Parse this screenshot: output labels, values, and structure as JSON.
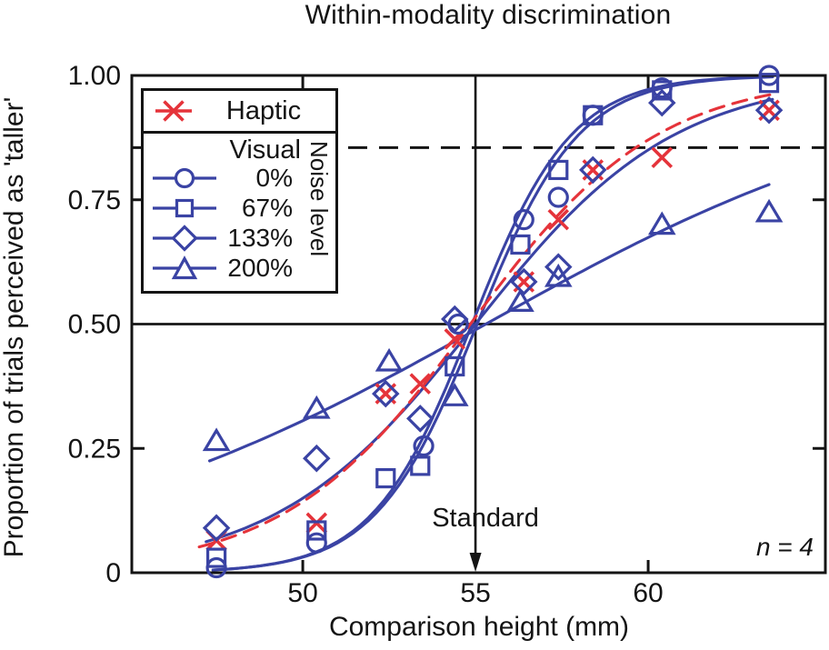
{
  "chart_data": {
    "type": "scatter",
    "title": "Within-modality discrimination",
    "xlabel": "Comparison height (mm)",
    "ylabel": "Proportion of trials perceived as 'taller'",
    "axes": {
      "x": {
        "min": 45.05,
        "max": 65.13,
        "ticks": [
          50,
          55,
          60
        ],
        "tick_labels": [
          "50",
          "55",
          "60"
        ]
      },
      "y": {
        "min": 0,
        "max": 1,
        "ticks": [
          0,
          0.25,
          0.5,
          0.75,
          1
        ],
        "tick_labels": [
          "0",
          "0.25",
          "0.50",
          "0.75",
          "1.00"
        ]
      }
    },
    "colors": {
      "visual": "#3A43A4",
      "haptic": "#E5333A",
      "axis": "#141414"
    },
    "series": [
      {
        "key": "haptic",
        "name": "Haptic",
        "marker": "x",
        "color_key": "haptic",
        "points": [
          [
            47.5,
            0.065
          ],
          [
            50.4,
            0.1
          ],
          [
            52.4,
            0.36
          ],
          [
            53.4,
            0.38
          ],
          [
            54.4,
            0.47
          ],
          [
            56.4,
            0.585
          ],
          [
            57.4,
            0.71
          ],
          [
            58.4,
            0.81
          ],
          [
            60.4,
            0.835
          ],
          [
            63.5,
            0.93
          ]
        ]
      },
      {
        "key": "visual_0",
        "name": "Visual 0% noise",
        "marker": "circle",
        "color_key": "visual",
        "points": [
          [
            47.5,
            0.01
          ],
          [
            50.4,
            0.06
          ],
          [
            53.5,
            0.255
          ],
          [
            54.5,
            0.5
          ],
          [
            56.4,
            0.71
          ],
          [
            57.4,
            0.755
          ],
          [
            58.4,
            0.92
          ],
          [
            60.4,
            0.975
          ],
          [
            63.5,
            1.0
          ]
        ]
      },
      {
        "key": "visual_67",
        "name": "Visual 67% noise",
        "marker": "square",
        "color_key": "visual",
        "points": [
          [
            47.5,
            0.03
          ],
          [
            50.4,
            0.085
          ],
          [
            52.4,
            0.19
          ],
          [
            53.4,
            0.215
          ],
          [
            54.4,
            0.415
          ],
          [
            56.3,
            0.66
          ],
          [
            57.4,
            0.81
          ],
          [
            58.4,
            0.92
          ],
          [
            60.4,
            0.97
          ],
          [
            63.5,
            0.985
          ]
        ]
      },
      {
        "key": "visual_133",
        "name": "Visual 133% noise",
        "marker": "diamond",
        "color_key": "visual",
        "points": [
          [
            47.5,
            0.09
          ],
          [
            50.4,
            0.23
          ],
          [
            52.4,
            0.36
          ],
          [
            53.4,
            0.31
          ],
          [
            54.4,
            0.51
          ],
          [
            56.4,
            0.585
          ],
          [
            57.4,
            0.615
          ],
          [
            58.4,
            0.81
          ],
          [
            60.4,
            0.945
          ],
          [
            63.5,
            0.93
          ]
        ]
      },
      {
        "key": "visual_200",
        "name": "Visual 200% noise",
        "marker": "triangle",
        "color_key": "visual",
        "points": [
          [
            47.5,
            0.265
          ],
          [
            50.4,
            0.33
          ],
          [
            52.5,
            0.425
          ],
          [
            54.4,
            0.355
          ],
          [
            56.3,
            0.545
          ],
          [
            57.4,
            0.595
          ],
          [
            60.4,
            0.7
          ],
          [
            63.5,
            0.725
          ]
        ]
      }
    ],
    "fits": [
      {
        "series": "visual_0",
        "shape": "cumulative_gaussian",
        "pse": 54.9,
        "sigma": 2.45,
        "x_range": [
          47.4,
          63.6
        ],
        "style": "solid",
        "color_key": "visual"
      },
      {
        "series": "visual_67",
        "shape": "cumulative_gaussian",
        "pse": 55.05,
        "sigma": 2.5,
        "x_range": [
          47.4,
          63.6
        ],
        "style": "solid",
        "color_key": "visual"
      },
      {
        "series": "visual_133",
        "shape": "cumulative_gaussian",
        "pse": 55.0,
        "sigma": 4.9,
        "x_range": [
          47.2,
          63.6
        ],
        "style": "solid",
        "color_key": "visual"
      },
      {
        "series": "visual_200",
        "shape": "cumulative_gaussian",
        "pse": 55.3,
        "sigma": 11.0,
        "x_range": [
          47.3,
          63.5
        ],
        "style": "solid",
        "color_key": "visual"
      },
      {
        "series": "haptic",
        "shape": "cumulative_gaussian",
        "pse": 54.85,
        "sigma": 4.6,
        "x_range": [
          47.0,
          63.6
        ],
        "style": "dashed",
        "color_key": "haptic"
      }
    ],
    "reference_lines": {
      "h_solid_y": 0.5,
      "h_dashed_y": 0.855,
      "v_solid_x": 55
    },
    "annotations": {
      "standard": {
        "label": "Standard",
        "x": 55
      },
      "sample_size": {
        "label": "n = 4"
      }
    },
    "legend": {
      "haptic_label": "Haptic",
      "visual_label": "Visual",
      "noise_label": "Noise level",
      "rows": [
        {
          "series": "visual_0",
          "label": "0%"
        },
        {
          "series": "visual_67",
          "label": "67%"
        },
        {
          "series": "visual_133",
          "label": "133%"
        },
        {
          "series": "visual_200",
          "label": "200%"
        }
      ]
    }
  }
}
